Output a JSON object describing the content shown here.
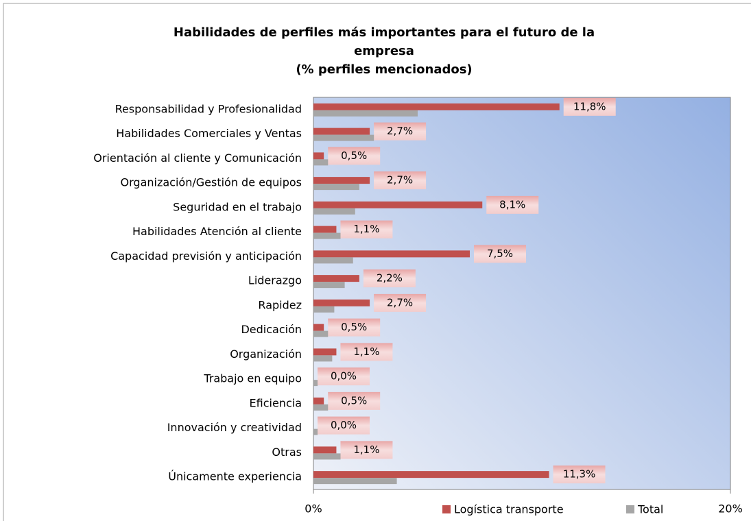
{
  "chart_data": {
    "type": "bar",
    "orientation": "horizontal",
    "title": [
      "Habilidades de perfiles más importantes para el futuro de la",
      "empresa",
      "(% perfiles mencionados)"
    ],
    "categories": [
      "Responsabilidad y Profesionalidad",
      "Habilidades Comerciales y Ventas",
      "Orientación al cliente y Comunicación",
      "Organización/Gestión de equipos",
      "Seguridad en el trabajo",
      "Habilidades Atención al cliente",
      "Capacidad previsión y anticipación",
      "Liderazgo",
      "Rapidez",
      "Dedicación",
      "Organización",
      "Trabajo en equipo",
      "Eficiencia",
      "Innovación y creatividad",
      "Otras",
      "Únicamente experiencia"
    ],
    "series": [
      {
        "name": "Logística transporte",
        "color": "#c0504d",
        "values": [
          11.8,
          2.7,
          0.5,
          2.7,
          8.1,
          1.1,
          7.5,
          2.2,
          2.7,
          0.5,
          1.1,
          0.0,
          0.5,
          0.0,
          1.1,
          11.3
        ],
        "value_labels": [
          "11,8%",
          "2,7%",
          "0,5%",
          "2,7%",
          "8,1%",
          "1,1%",
          "7,5%",
          "2,2%",
          "2,7%",
          "0,5%",
          "1,1%",
          "0,0%",
          "0,5%",
          "0,0%",
          "1,1%",
          "11,3%"
        ]
      },
      {
        "name": "Total",
        "color": "#a6a6a6",
        "values": [
          5.0,
          2.9,
          0.7,
          2.2,
          2.0,
          1.3,
          1.9,
          1.5,
          1.0,
          0.7,
          0.9,
          0.2,
          0.7,
          0.2,
          1.3,
          4.0
        ]
      }
    ],
    "xlim": [
      0,
      20
    ],
    "xticks": [
      {
        "value": 0,
        "label": "0%"
      },
      {
        "value": 20,
        "label": "20%"
      }
    ],
    "legend": "bottom"
  }
}
